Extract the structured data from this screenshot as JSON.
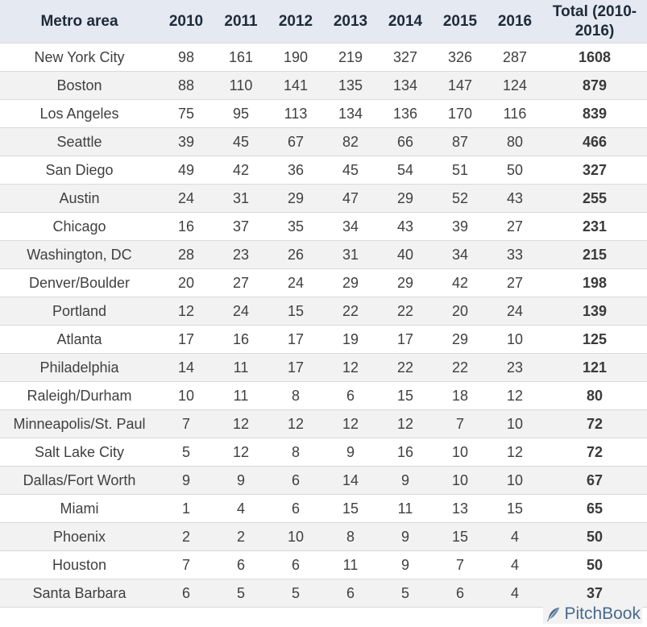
{
  "chart_data": {
    "type": "table",
    "columns": [
      "Metro area",
      "2010",
      "2011",
      "2012",
      "2013",
      "2014",
      "2015",
      "2016",
      "Total (2010-2016)"
    ],
    "rows": [
      [
        "New York City",
        98,
        161,
        190,
        219,
        327,
        326,
        287,
        1608
      ],
      [
        "Boston",
        88,
        110,
        141,
        135,
        134,
        147,
        124,
        879
      ],
      [
        "Los Angeles",
        75,
        95,
        113,
        134,
        136,
        170,
        116,
        839
      ],
      [
        "Seattle",
        39,
        45,
        67,
        82,
        66,
        87,
        80,
        466
      ],
      [
        "San Diego",
        49,
        42,
        36,
        45,
        54,
        51,
        50,
        327
      ],
      [
        "Austin",
        24,
        31,
        29,
        47,
        29,
        52,
        43,
        255
      ],
      [
        "Chicago",
        16,
        37,
        35,
        34,
        43,
        39,
        27,
        231
      ],
      [
        "Washington, DC",
        28,
        23,
        26,
        31,
        40,
        34,
        33,
        215
      ],
      [
        "Denver/Boulder",
        20,
        27,
        24,
        29,
        29,
        42,
        27,
        198
      ],
      [
        "Portland",
        12,
        24,
        15,
        22,
        22,
        20,
        24,
        139
      ],
      [
        "Atlanta",
        17,
        16,
        17,
        19,
        17,
        29,
        10,
        125
      ],
      [
        "Philadelphia",
        14,
        11,
        17,
        12,
        22,
        22,
        23,
        121
      ],
      [
        "Raleigh/Durham",
        10,
        11,
        8,
        6,
        15,
        18,
        12,
        80
      ],
      [
        "Minneapolis/St. Paul",
        7,
        12,
        12,
        12,
        12,
        7,
        10,
        72
      ],
      [
        "Salt Lake City",
        5,
        12,
        8,
        9,
        16,
        10,
        12,
        72
      ],
      [
        "Dallas/Fort Worth",
        9,
        9,
        6,
        14,
        9,
        10,
        10,
        67
      ],
      [
        "Miami",
        1,
        4,
        6,
        15,
        11,
        13,
        15,
        65
      ],
      [
        "Phoenix",
        2,
        2,
        10,
        8,
        9,
        15,
        4,
        50
      ],
      [
        "Houston",
        7,
        6,
        6,
        11,
        9,
        7,
        4,
        50
      ],
      [
        "Santa Barbara",
        6,
        5,
        5,
        6,
        5,
        6,
        4,
        37
      ]
    ]
  },
  "logo": {
    "text": "PitchBook",
    "icon": "feather-icon"
  },
  "colors": {
    "header_bg": "#e4e9f2",
    "stripe_bg": "#f2f2f2",
    "text": "#404040",
    "logo": "#49698f"
  }
}
